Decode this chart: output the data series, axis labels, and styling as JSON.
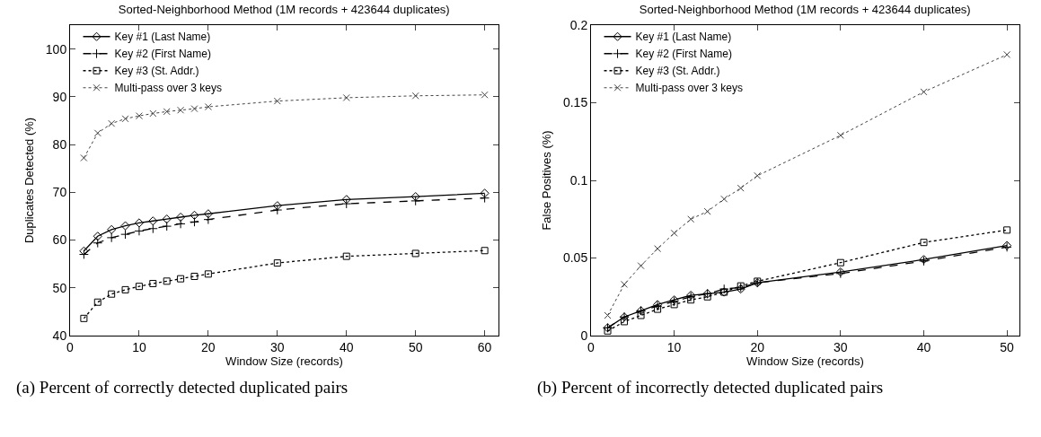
{
  "chart_data": [
    {
      "type": "line",
      "title": "Sorted-Neighborhood Method (1M records + 423644 duplicates)",
      "xlabel": "Window Size (records)",
      "ylabel": "Duplicates Detected (%)",
      "x": [
        2,
        4,
        6,
        8,
        10,
        12,
        14,
        16,
        18,
        20,
        30,
        40,
        50,
        60
      ],
      "series": [
        {
          "name": "Key #1 (Last Name)",
          "color": "#000000",
          "marker": "diamond",
          "line_style": "solid",
          "values": [
            57.7,
            60.8,
            62.2,
            63.0,
            63.6,
            64.0,
            64.4,
            64.8,
            65.2,
            65.5,
            67.2,
            68.5,
            69.1,
            69.8
          ]
        },
        {
          "name": "Key #2 (First Name)",
          "color": "#000000",
          "marker": "cross",
          "line_style": "dashed",
          "values": [
            57.0,
            59.4,
            60.5,
            61.2,
            61.9,
            62.4,
            62.9,
            63.4,
            63.8,
            64.3,
            66.3,
            67.6,
            68.2,
            68.8
          ]
        },
        {
          "name": "Key #3 (St. Addr.)",
          "color": "#000000",
          "marker": "square",
          "line_style": "dotted",
          "values": [
            43.6,
            47.0,
            48.7,
            49.6,
            50.3,
            50.9,
            51.4,
            51.9,
            52.4,
            52.9,
            55.2,
            56.6,
            57.2,
            57.8
          ]
        },
        {
          "name": "Multi-pass over 3 keys",
          "color": "#444444",
          "marker": "x",
          "line_style": "dotted",
          "values": [
            77.2,
            82.4,
            84.4,
            85.4,
            86.0,
            86.5,
            86.9,
            87.2,
            87.5,
            87.9,
            89.1,
            89.8,
            90.2,
            90.4
          ]
        }
      ],
      "xlim": [
        0,
        62
      ],
      "xticks": [
        0,
        10,
        20,
        30,
        40,
        50,
        60
      ],
      "ylim": [
        40,
        105
      ],
      "yticks": [
        40,
        50,
        60,
        70,
        80,
        90,
        100
      ],
      "grid": false,
      "legend": "top left",
      "annotations": [
        "(a) Percent of correctly detected duplicated pairs"
      ]
    },
    {
      "type": "line",
      "title": "Sorted-Neighborhood Method (1M records + 423644 duplicates)",
      "xlabel": "Window Size (records)",
      "ylabel": "False Positives (%)",
      "x": [
        2,
        4,
        6,
        8,
        10,
        12,
        14,
        16,
        18,
        20,
        30,
        40,
        50
      ],
      "series": [
        {
          "name": "Key #1 (Last Name)",
          "color": "#000000",
          "marker": "diamond",
          "line_style": "solid",
          "values": [
            0.005,
            0.012,
            0.016,
            0.02,
            0.023,
            0.026,
            0.027,
            0.028,
            0.03,
            0.034,
            0.041,
            0.049,
            0.058
          ]
        },
        {
          "name": "Key #2 (First Name)",
          "color": "#000000",
          "marker": "cross",
          "line_style": "dashed",
          "values": [
            0.005,
            0.012,
            0.016,
            0.019,
            0.022,
            0.025,
            0.027,
            0.03,
            0.031,
            0.034,
            0.04,
            0.048,
            0.057
          ]
        },
        {
          "name": "Key #3 (St. Addr.)",
          "color": "#000000",
          "marker": "square",
          "line_style": "dotted",
          "values": [
            0.003,
            0.009,
            0.013,
            0.017,
            0.02,
            0.023,
            0.025,
            0.028,
            0.032,
            0.035,
            0.047,
            0.06,
            0.068
          ]
        },
        {
          "name": "Multi-pass over 3 keys",
          "color": "#444444",
          "marker": "x",
          "line_style": "dotted",
          "values": [
            0.013,
            0.033,
            0.045,
            0.056,
            0.066,
            0.075,
            0.08,
            0.088,
            0.095,
            0.103,
            0.129,
            0.157,
            0.181
          ]
        }
      ],
      "xlim": [
        0,
        51.5
      ],
      "xticks": [
        0,
        10,
        20,
        30,
        40,
        50
      ],
      "ylim": [
        0,
        0.2
      ],
      "yticks": [
        0,
        0.05,
        0.1,
        0.15,
        0.2
      ],
      "grid": false,
      "legend": "top left",
      "annotations": [
        "(b) Percent of incorrectly detected duplicated pairs"
      ]
    }
  ]
}
